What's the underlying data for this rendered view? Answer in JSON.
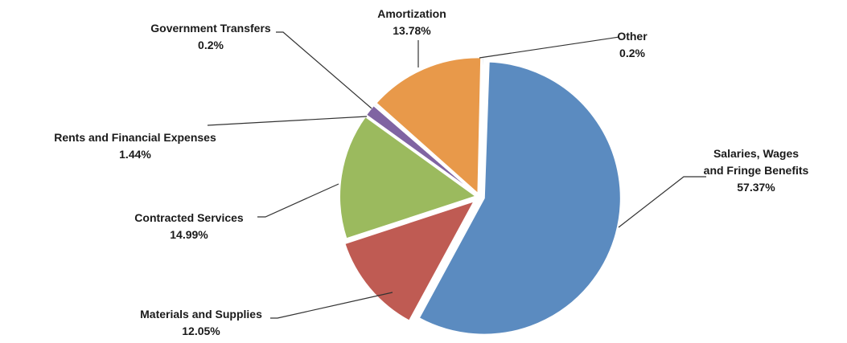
{
  "chart_data": {
    "type": "pie",
    "title": "",
    "slices": [
      {
        "name": "Salaries, Wages and Fringe Benefits",
        "label_lines": [
          "Salaries, Wages",
          "and Fringe Benefits"
        ],
        "value": 57.37,
        "value_label": "57.37%",
        "color": "#5b8bc0"
      },
      {
        "name": "Materials and Supplies",
        "label_lines": [
          "Materials and Supplies"
        ],
        "value": 12.05,
        "value_label": "12.05%",
        "color": "#bf5b53"
      },
      {
        "name": "Contracted Services",
        "label_lines": [
          "Contracted Services"
        ],
        "value": 14.99,
        "value_label": "14.99%",
        "color": "#9bba5e"
      },
      {
        "name": "Rents and Financial Expenses",
        "label_lines": [
          "Rents and Financial Expenses"
        ],
        "value": 1.44,
        "value_label": "1.44%",
        "color": "#8064a2"
      },
      {
        "name": "Government Transfers",
        "label_lines": [
          "Government Transfers"
        ],
        "value": 0.2,
        "value_label": "0.2%",
        "color": "#4bacc6"
      },
      {
        "name": "Amortization",
        "label_lines": [
          "Amortization"
        ],
        "value": 13.78,
        "value_label": "13.78%",
        "color": "#e8994a"
      },
      {
        "name": "Other",
        "label_lines": [
          "Other"
        ],
        "value": 0.2,
        "value_label": "0.2%",
        "color": "#2c4d75"
      }
    ]
  }
}
